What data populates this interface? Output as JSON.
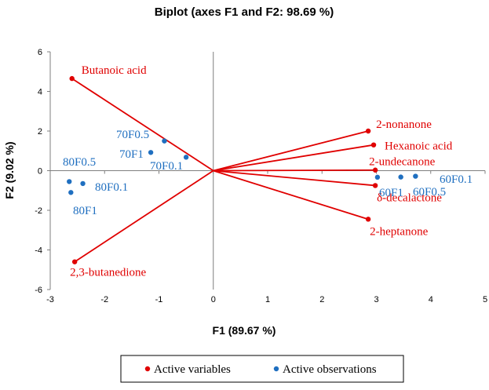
{
  "chart_data": {
    "type": "scatter",
    "title": "Biplot (axes F1 and F2: 98.69 %)",
    "xlabel": "F1 (89.67 %)",
    "ylabel": "F2 (9.02 %)",
    "xlim": [
      -3,
      5
    ],
    "ylim": [
      -6,
      6
    ],
    "xticks": [
      "-3",
      "-2",
      "-1",
      "0",
      "1",
      "2",
      "3",
      "4",
      "5"
    ],
    "yticks": [
      "6",
      "4",
      "2",
      "0",
      "-2",
      "-4",
      "-6"
    ],
    "grid": false,
    "legend_position": "bottom",
    "legend": {
      "variables": "Active variables",
      "observations": "Active observations"
    },
    "colors": {
      "variables": "#e00000",
      "observations": "#1f6fc0"
    },
    "variables": [
      {
        "label": "Butanoic acid",
        "x": -2.6,
        "y": 4.65
      },
      {
        "label": "2,3-butanedione",
        "x": -2.55,
        "y": -4.6
      },
      {
        "label": "2-nonanone",
        "x": 2.85,
        "y": 2.0
      },
      {
        "label": "Hexanoic acid",
        "x": 2.95,
        "y": 1.3
      },
      {
        "label": "2-undecanone",
        "x": 2.98,
        "y": 0.03
      },
      {
        "label": "δ-decalactone",
        "x": 2.98,
        "y": -0.75
      },
      {
        "label": "2-heptanone",
        "x": 2.85,
        "y": -2.45
      }
    ],
    "observations": [
      {
        "label": "70F0.5",
        "x": -0.9,
        "y": 1.5
      },
      {
        "label": "70F1",
        "x": -1.15,
        "y": 0.92
      },
      {
        "label": "70F0.1",
        "x": -0.5,
        "y": 0.68
      },
      {
        "label": "80F0.5",
        "x": -2.65,
        "y": -0.55
      },
      {
        "label": "80F0.1",
        "x": -2.4,
        "y": -0.65
      },
      {
        "label": "80F1",
        "x": -2.62,
        "y": -1.1
      },
      {
        "label": "60F0.1",
        "x": 3.72,
        "y": -0.28
      },
      {
        "label": "60F0.5",
        "x": 3.45,
        "y": -0.32
      },
      {
        "label": "60F1",
        "x": 3.02,
        "y": -0.33
      }
    ]
  }
}
